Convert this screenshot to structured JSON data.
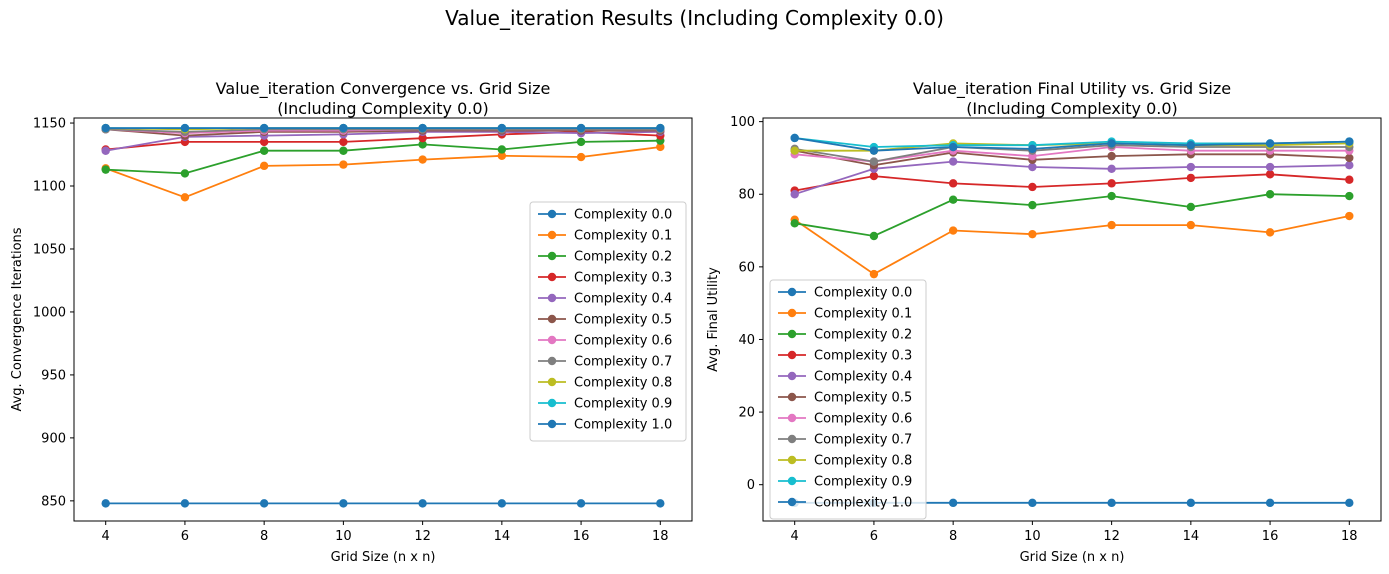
{
  "figure": {
    "title": "Value_iteration Results (Including Complexity 0.0)"
  },
  "chart_data": [
    {
      "type": "line",
      "title_lines": [
        "Value_iteration Convergence vs. Grid Size",
        "(Including Complexity 0.0)"
      ],
      "xlabel": "Grid Size (n x n)",
      "ylabel": "Avg. Convergence Iterations",
      "x": [
        4,
        6,
        8,
        10,
        12,
        14,
        16,
        18
      ],
      "xlim": [
        3.2,
        18.8
      ],
      "ylim": [
        834,
        1154
      ],
      "xticks": [
        4,
        6,
        8,
        10,
        12,
        14,
        16,
        18
      ],
      "yticks": [
        850,
        900,
        950,
        1000,
        1050,
        1100,
        1150
      ],
      "grid": false,
      "legend": "center-right",
      "series": [
        {
          "name": "Complexity 0.0",
          "color": "#1f77b4",
          "values": [
            848,
            848,
            848,
            848,
            848,
            848,
            848,
            848
          ]
        },
        {
          "name": "Complexity 0.1",
          "color": "#ff7f0e",
          "values": [
            1114,
            1091,
            1116,
            1117,
            1121,
            1124,
            1123,
            1131
          ]
        },
        {
          "name": "Complexity 0.2",
          "color": "#2ca02c",
          "values": [
            1113,
            1110,
            1128,
            1128,
            1133,
            1129,
            1135,
            1136
          ]
        },
        {
          "name": "Complexity 0.3",
          "color": "#d62728",
          "values": [
            1129,
            1135,
            1135,
            1135,
            1138,
            1141,
            1143,
            1140
          ]
        },
        {
          "name": "Complexity 0.4",
          "color": "#9467bd",
          "values": [
            1128,
            1139,
            1140,
            1141,
            1143,
            1143,
            1142,
            1143
          ]
        },
        {
          "name": "Complexity 0.5",
          "color": "#8c564b",
          "values": [
            1145,
            1140,
            1143,
            1143,
            1144,
            1144,
            1144,
            1144
          ]
        },
        {
          "name": "Complexity 0.6",
          "color": "#e377c2",
          "values": [
            1145,
            1142,
            1144,
            1144,
            1145,
            1145,
            1145,
            1145
          ]
        },
        {
          "name": "Complexity 0.7",
          "color": "#7f7f7f",
          "values": [
            1145,
            1143,
            1145,
            1145,
            1145,
            1145,
            1145,
            1145
          ]
        },
        {
          "name": "Complexity 0.8",
          "color": "#bcbd22",
          "values": [
            1146,
            1145,
            1146,
            1146,
            1146,
            1146,
            1146,
            1146
          ]
        },
        {
          "name": "Complexity 0.9",
          "color": "#17becf",
          "values": [
            1146,
            1146,
            1146,
            1146,
            1146,
            1146,
            1146,
            1146
          ]
        },
        {
          "name": "Complexity 1.0",
          "color": "#1f77b4",
          "values": [
            1146,
            1146,
            1146,
            1146,
            1146,
            1146,
            1146,
            1146
          ]
        }
      ]
    },
    {
      "type": "line",
      "title_lines": [
        "Value_iteration Final Utility vs. Grid Size",
        "(Including Complexity 0.0)"
      ],
      "xlabel": "Grid Size (n x n)",
      "ylabel": "Avg. Final Utility",
      "x": [
        4,
        6,
        8,
        10,
        12,
        14,
        16,
        18
      ],
      "xlim": [
        3.2,
        18.8
      ],
      "ylim": [
        -10,
        101
      ],
      "xticks": [
        4,
        6,
        8,
        10,
        12,
        14,
        16,
        18
      ],
      "yticks": [
        0,
        20,
        40,
        60,
        80,
        100
      ],
      "grid": false,
      "legend": "lower-left",
      "series": [
        {
          "name": "Complexity 0.0",
          "color": "#1f77b4",
          "values": [
            -5,
            -5,
            -5,
            -5,
            -5,
            -5,
            -5,
            -5
          ]
        },
        {
          "name": "Complexity 0.1",
          "color": "#ff7f0e",
          "values": [
            73,
            58,
            70,
            69,
            71.5,
            71.5,
            69.5,
            74
          ]
        },
        {
          "name": "Complexity 0.2",
          "color": "#2ca02c",
          "values": [
            72,
            68.5,
            78.5,
            77,
            79.5,
            76.5,
            80,
            79.5
          ]
        },
        {
          "name": "Complexity 0.3",
          "color": "#d62728",
          "values": [
            81,
            85,
            83,
            82,
            83,
            84.5,
            85.5,
            84
          ]
        },
        {
          "name": "Complexity 0.4",
          "color": "#9467bd",
          "values": [
            80,
            87,
            89,
            87.5,
            87,
            87.5,
            87.5,
            88
          ]
        },
        {
          "name": "Complexity 0.5",
          "color": "#8c564b",
          "values": [
            92,
            88,
            91.5,
            89.5,
            90.5,
            91,
            91,
            90
          ]
        },
        {
          "name": "Complexity 0.6",
          "color": "#e377c2",
          "values": [
            91,
            89,
            92,
            90.5,
            93,
            92,
            92,
            92
          ]
        },
        {
          "name": "Complexity 0.7",
          "color": "#7f7f7f",
          "values": [
            92.5,
            89,
            93,
            92,
            93.5,
            93,
            93,
            93
          ]
        },
        {
          "name": "Complexity 0.8",
          "color": "#bcbd22",
          "values": [
            92,
            92,
            94,
            93.5,
            94,
            93.5,
            93.5,
            94
          ]
        },
        {
          "name": "Complexity 0.9",
          "color": "#17becf",
          "values": [
            95.5,
            93,
            93.5,
            93.5,
            94.5,
            94,
            94,
            94.5
          ]
        },
        {
          "name": "Complexity 1.0",
          "color": "#1f77b4",
          "values": [
            95.5,
            92,
            93,
            92.5,
            94,
            93.5,
            94,
            94.5
          ]
        }
      ]
    }
  ]
}
